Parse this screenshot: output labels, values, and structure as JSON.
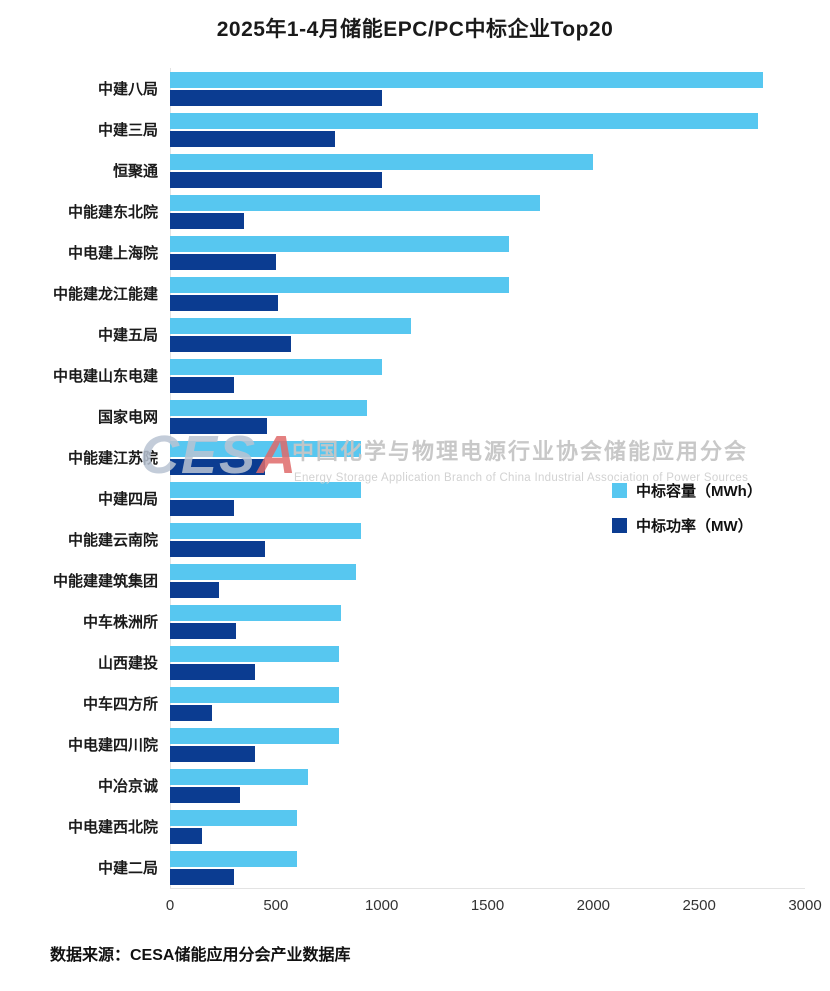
{
  "title": "2025年1-4月储能EPC/PC中标企业Top20",
  "source": "数据来源：CESA储能应用分会产业数据库",
  "watermark": {
    "logo_ces": "CES",
    "logo_a": "A",
    "cn": "中国化学与物理电源行业协会储能应用分会",
    "en": "Energy Storage Application Branch of China Industrial Association of Power Sources"
  },
  "legend": [
    {
      "label": "中标容量（MWh）",
      "color": "#57c7f0"
    },
    {
      "label": "中标功率（MW）",
      "color": "#0b3c91"
    }
  ],
  "chart_data": {
    "type": "bar",
    "orientation": "horizontal",
    "title": "2025年1-4月储能EPC/PC中标企业Top20",
    "categories": [
      "中建八局",
      "中建三局",
      "恒聚通",
      "中能建东北院",
      "中电建上海院",
      "中能建龙江能建",
      "中建五局",
      "中电建山东电建",
      "国家电网",
      "中能建江苏院",
      "中建四局",
      "中能建云南院",
      "中能建建筑集团",
      "中车株洲所",
      "山西建投",
      "中车四方所",
      "中电建四川院",
      "中冶京诚",
      "中电建西北院",
      "中建二局"
    ],
    "series": [
      {
        "name": "中标容量（MWh）",
        "color": "#57c7f0",
        "values": [
          2800,
          2780,
          2000,
          1750,
          1600,
          1600,
          1140,
          1000,
          930,
          900,
          900,
          900,
          880,
          810,
          800,
          800,
          800,
          650,
          600,
          600
        ]
      },
      {
        "name": "中标功率（MW）",
        "color": "#0b3c91",
        "values": [
          1000,
          780,
          1000,
          350,
          500,
          510,
          570,
          300,
          460,
          450,
          300,
          450,
          230,
          310,
          400,
          200,
          400,
          330,
          150,
          300
        ]
      }
    ],
    "xlim": [
      0,
      3000
    ],
    "xticks": [
      0,
      500,
      1000,
      1500,
      2000,
      2500,
      3000
    ],
    "grid": false,
    "legend_position": "middle-right",
    "xlabel": "",
    "ylabel": ""
  }
}
